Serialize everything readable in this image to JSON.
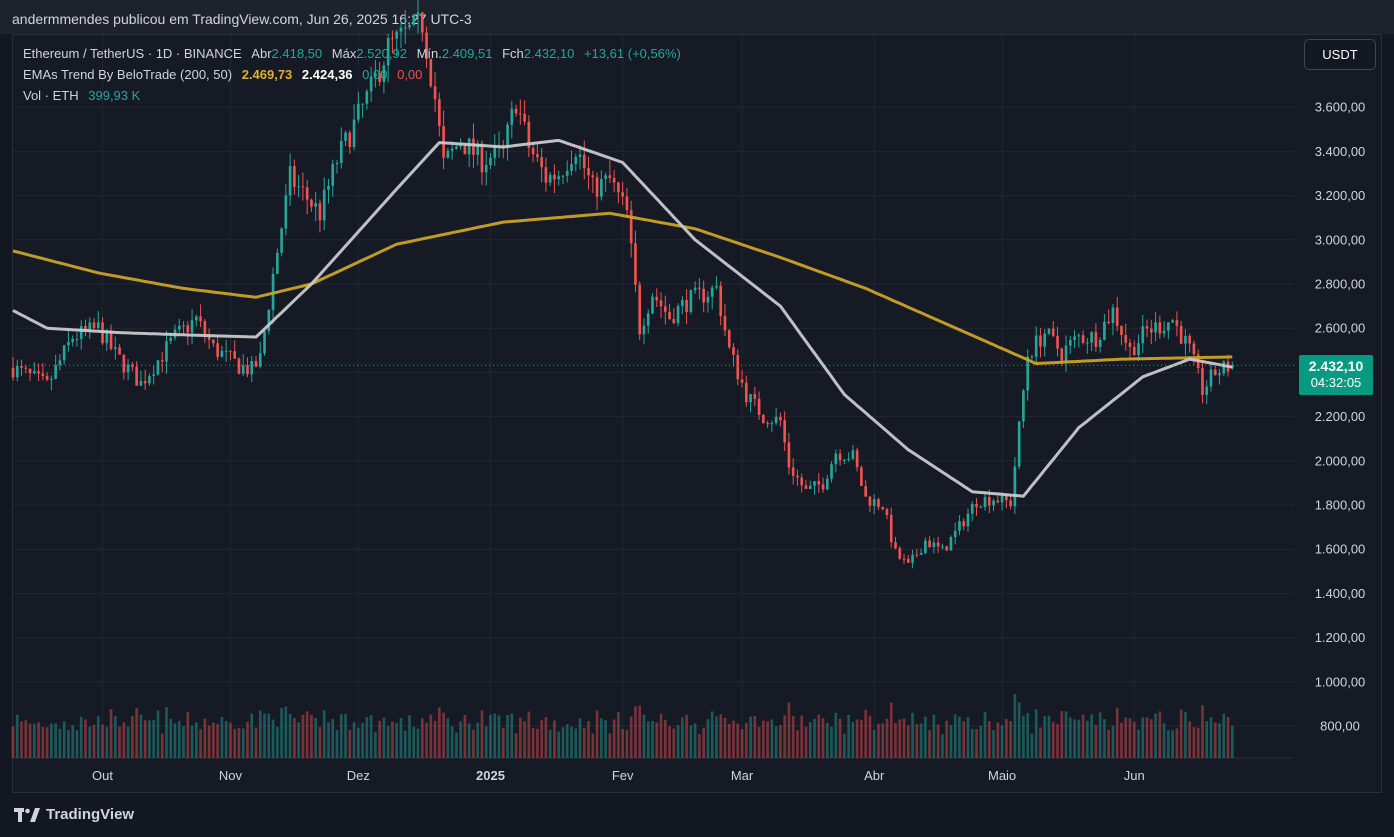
{
  "header": {
    "publisher_line": "andermmendes publicou em TradingView.com, Jun 26, 2025 16:27 UTC-3"
  },
  "legend": {
    "symbol": "Ethereum / TetherUS · 1D · BINANCE",
    "open_label": "Abr",
    "open_value": "2.418,50",
    "high_label": "Máx",
    "high_value": "2.520,92",
    "low_label": "Mín.",
    "low_value": "2.409,51",
    "close_label": "Fch",
    "close_value": "2.432,10",
    "change": "+13,61 (+0,56%)",
    "indicator_name": "EMAs Trend By BeloTrade (200, 50)",
    "ema200_value": "2.469,73",
    "ema50_value": "2.424,36",
    "signal_up": "0,00",
    "signal_down": "0,00",
    "volume_label": "Vol · ETH",
    "volume_value": "399,93 K"
  },
  "currency_button": "USDT",
  "last_price": {
    "value": "2.432,10",
    "countdown": "04:32:05"
  },
  "branding": {
    "logo_text": "TradingView"
  },
  "colors": {
    "up": "#26a69a",
    "down": "#ef5350",
    "ema200": "#c9a227",
    "ema50": "#c8c9cc",
    "price_tag": "#089981"
  },
  "chart_data": {
    "type": "candlestick",
    "title": "Ethereum / TetherUS · 1D · BINANCE",
    "y_axis": {
      "range": [
        720,
        3880
      ],
      "ticks": [
        800,
        1000,
        1200,
        1400,
        1600,
        1800,
        2000,
        2200,
        2400,
        2600,
        2800,
        3000,
        3200,
        3400,
        3600
      ],
      "tick_labels": [
        "800,00",
        "1.000,00",
        "1.200,00",
        "1.400,00",
        "1.600,00",
        "1.800,00",
        "2.000,00",
        "2.200,00",
        "2.400,00",
        "2.600,00",
        "2.800,00",
        "3.000,00",
        "3.200,00",
        "3.400,00",
        "3.600,00"
      ]
    },
    "x_axis": {
      "day_range": [
        0,
        300
      ],
      "labels": [
        {
          "text": "Out",
          "day": 21,
          "bold": false
        },
        {
          "text": "Nov",
          "day": 51,
          "bold": false
        },
        {
          "text": "Dez",
          "day": 81,
          "bold": false
        },
        {
          "text": "2025",
          "day": 112,
          "bold": true
        },
        {
          "text": "Fev",
          "day": 143,
          "bold": false
        },
        {
          "text": "Mar",
          "day": 171,
          "bold": false
        },
        {
          "text": "Abr",
          "day": 202,
          "bold": false
        },
        {
          "text": "Maio",
          "day": 232,
          "bold": false
        },
        {
          "text": "Jun",
          "day": 263,
          "bold": false
        }
      ]
    },
    "series_price_keypoints": [
      [
        0,
        2420
      ],
      [
        8,
        2340
      ],
      [
        14,
        2560
      ],
      [
        20,
        2600
      ],
      [
        24,
        2480
      ],
      [
        30,
        2350
      ],
      [
        38,
        2560
      ],
      [
        43,
        2640
      ],
      [
        47,
        2510
      ],
      [
        53,
        2430
      ],
      [
        56,
        2410
      ],
      [
        58,
        2460
      ],
      [
        61,
        2840
      ],
      [
        65,
        3280
      ],
      [
        72,
        3120
      ],
      [
        76,
        3360
      ],
      [
        80,
        3520
      ],
      [
        84,
        3680
      ],
      [
        88,
        3870
      ],
      [
        92,
        3930
      ],
      [
        96,
        3980
      ],
      [
        99,
        3640
      ],
      [
        101,
        3340
      ],
      [
        105,
        3450
      ],
      [
        110,
        3360
      ],
      [
        115,
        3400
      ],
      [
        118,
        3630
      ],
      [
        121,
        3420
      ],
      [
        125,
        3280
      ],
      [
        128,
        3300
      ],
      [
        132,
        3420
      ],
      [
        136,
        3230
      ],
      [
        140,
        3270
      ],
      [
        144,
        3120
      ],
      [
        147,
        2600
      ],
      [
        150,
        2760
      ],
      [
        154,
        2650
      ],
      [
        158,
        2720
      ],
      [
        165,
        2780
      ],
      [
        168,
        2500
      ],
      [
        172,
        2300
      ],
      [
        176,
        2200
      ],
      [
        180,
        2180
      ],
      [
        182,
        1980
      ],
      [
        186,
        1860
      ],
      [
        190,
        1900
      ],
      [
        193,
        2040
      ],
      [
        197,
        2020
      ],
      [
        200,
        1830
      ],
      [
        204,
        1800
      ],
      [
        207,
        1580
      ],
      [
        210,
        1520
      ],
      [
        214,
        1640
      ],
      [
        218,
        1590
      ],
      [
        222,
        1700
      ],
      [
        226,
        1820
      ],
      [
        230,
        1830
      ],
      [
        234,
        1810
      ],
      [
        236,
        2150
      ],
      [
        238,
        2480
      ],
      [
        242,
        2580
      ],
      [
        246,
        2490
      ],
      [
        250,
        2560
      ],
      [
        254,
        2560
      ],
      [
        258,
        2680
      ],
      [
        262,
        2500
      ],
      [
        266,
        2590
      ],
      [
        270,
        2620
      ],
      [
        272,
        2640
      ],
      [
        276,
        2500
      ],
      [
        279,
        2320
      ],
      [
        282,
        2400
      ],
      [
        286,
        2432
      ]
    ],
    "series": [
      {
        "name": "EMA 200",
        "value_last": 2469.73,
        "keypoints": [
          [
            0,
            2950
          ],
          [
            20,
            2850
          ],
          [
            40,
            2780
          ],
          [
            57,
            2740
          ],
          [
            70,
            2800
          ],
          [
            90,
            2980
          ],
          [
            115,
            3080
          ],
          [
            140,
            3120
          ],
          [
            160,
            3050
          ],
          [
            180,
            2920
          ],
          [
            200,
            2780
          ],
          [
            220,
            2610
          ],
          [
            240,
            2440
          ],
          [
            260,
            2460
          ],
          [
            286,
            2470
          ]
        ]
      },
      {
        "name": "EMA 50",
        "value_last": 2424.36,
        "keypoints": [
          [
            0,
            2680
          ],
          [
            8,
            2600
          ],
          [
            25,
            2580
          ],
          [
            40,
            2570
          ],
          [
            57,
            2560
          ],
          [
            70,
            2800
          ],
          [
            90,
            3230
          ],
          [
            100,
            3440
          ],
          [
            115,
            3420
          ],
          [
            128,
            3450
          ],
          [
            143,
            3350
          ],
          [
            160,
            3000
          ],
          [
            180,
            2700
          ],
          [
            195,
            2300
          ],
          [
            210,
            2050
          ],
          [
            225,
            1860
          ],
          [
            237,
            1840
          ],
          [
            250,
            2150
          ],
          [
            265,
            2380
          ],
          [
            276,
            2460
          ],
          [
            286,
            2424
          ]
        ]
      }
    ],
    "volume_scale": {
      "base_axis_price": 720,
      "max_bar_price": 1480
    }
  }
}
